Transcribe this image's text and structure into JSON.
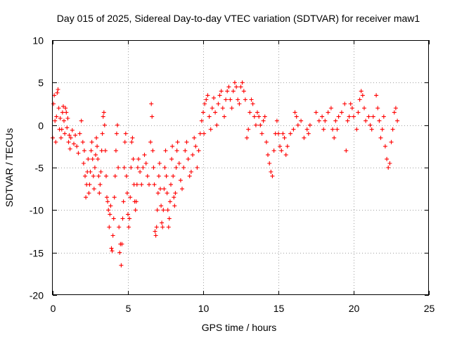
{
  "chart_data": {
    "type": "scatter",
    "title": "Day 015 of 2025, Sidereal Day-to-day VTEC variation (SDTVAR) for receiver maw1",
    "xlabel": "GPS time / hours",
    "ylabel": "SDTVAR / TECUs",
    "xlim": [
      0,
      25
    ],
    "ylim": [
      -20,
      10
    ],
    "xticks": [
      "0",
      "5",
      "10",
      "15",
      "20",
      "25"
    ],
    "yticks": [
      "-20",
      "-15",
      "-10",
      "-5",
      "0",
      "5",
      "10"
    ],
    "grid": true,
    "marker": "+",
    "color": "#ff0000",
    "series": [
      {
        "name": "SDTVAR",
        "points": [
          [
            0.0,
            -1.5
          ],
          [
            0.05,
            2.5
          ],
          [
            0.1,
            3.5
          ],
          [
            0.15,
            0.5
          ],
          [
            0.2,
            -2.0
          ],
          [
            0.25,
            1.0
          ],
          [
            0.3,
            3.8
          ],
          [
            0.35,
            4.2
          ],
          [
            0.4,
            2.0
          ],
          [
            0.45,
            -0.5
          ],
          [
            0.5,
            0.8
          ],
          [
            0.55,
            -1.5
          ],
          [
            0.6,
            -0.5
          ],
          [
            0.65,
            1.5
          ],
          [
            0.7,
            2.2
          ],
          [
            0.75,
            0.5
          ],
          [
            0.8,
            -1.0
          ],
          [
            0.85,
            2.0
          ],
          [
            0.9,
            1.5
          ],
          [
            0.95,
            -0.3
          ],
          [
            1.0,
            0.8
          ],
          [
            1.05,
            -2.0
          ],
          [
            1.1,
            -1.2
          ],
          [
            1.15,
            -2.8
          ],
          [
            1.2,
            -1.5
          ],
          [
            1.3,
            -0.6
          ],
          [
            1.4,
            -2.2
          ],
          [
            1.5,
            -1.2
          ],
          [
            1.6,
            -2.5
          ],
          [
            1.7,
            -3.3
          ],
          [
            1.8,
            -1.0
          ],
          [
            1.9,
            0.5
          ],
          [
            2.0,
            -2.0
          ],
          [
            2.05,
            -4.5
          ],
          [
            2.1,
            -3.0
          ],
          [
            2.15,
            -6.0
          ],
          [
            2.2,
            -8.5
          ],
          [
            2.25,
            -7.0
          ],
          [
            2.3,
            -5.5
          ],
          [
            2.35,
            -4.0
          ],
          [
            2.4,
            -8.0
          ],
          [
            2.45,
            -7.0
          ],
          [
            2.5,
            -5.5
          ],
          [
            2.55,
            -3.0
          ],
          [
            2.6,
            -2.0
          ],
          [
            2.65,
            -4.0
          ],
          [
            2.7,
            -6.0
          ],
          [
            2.75,
            -7.5
          ],
          [
            2.8,
            -5.0
          ],
          [
            2.85,
            -3.5
          ],
          [
            2.9,
            -1.5
          ],
          [
            2.95,
            -2.5
          ],
          [
            3.0,
            -4.0
          ],
          [
            3.05,
            -6.0
          ],
          [
            3.1,
            -8.0
          ],
          [
            3.15,
            -7.0
          ],
          [
            3.2,
            -5.5
          ],
          [
            3.25,
            -3.0
          ],
          [
            3.3,
            -1.0
          ],
          [
            3.35,
            1.0
          ],
          [
            3.4,
            1.5
          ],
          [
            3.45,
            0.0
          ],
          [
            3.5,
            -3.0
          ],
          [
            3.55,
            -6.0
          ],
          [
            3.6,
            -8.5
          ],
          [
            3.65,
            -9.0
          ],
          [
            3.7,
            -10.0
          ],
          [
            3.75,
            -12.0
          ],
          [
            3.8,
            -10.5
          ],
          [
            3.85,
            -9.5
          ],
          [
            3.9,
            -14.5
          ],
          [
            3.95,
            -14.8
          ],
          [
            4.0,
            -13.0
          ],
          [
            4.05,
            -11.0
          ],
          [
            4.1,
            -8.5
          ],
          [
            4.15,
            -6.0
          ],
          [
            4.2,
            -3.0
          ],
          [
            4.25,
            -1.0
          ],
          [
            4.3,
            0.0
          ],
          [
            4.35,
            -5.0
          ],
          [
            4.4,
            -12.0
          ],
          [
            4.45,
            -15.0
          ],
          [
            4.5,
            -14.0
          ],
          [
            4.55,
            -16.5
          ],
          [
            4.6,
            -14.0
          ],
          [
            4.65,
            -11.0
          ],
          [
            4.7,
            -9.0
          ],
          [
            4.75,
            -5.0
          ],
          [
            4.8,
            -2.0
          ],
          [
            4.85,
            -1.0
          ],
          [
            4.9,
            -6.0
          ],
          [
            4.95,
            -8.0
          ],
          [
            5.0,
            -10.5
          ],
          [
            5.05,
            -12.0
          ],
          [
            5.1,
            -11.0
          ],
          [
            5.15,
            -8.5
          ],
          [
            5.2,
            -5.0
          ],
          [
            5.25,
            -2.0
          ],
          [
            5.3,
            -1.5
          ],
          [
            5.35,
            -4.0
          ],
          [
            5.4,
            -7.0
          ],
          [
            5.45,
            -9.0
          ],
          [
            5.5,
            -10.0
          ],
          [
            5.55,
            -9.0
          ],
          [
            5.6,
            -7.0
          ],
          [
            5.65,
            -5.0
          ],
          [
            5.7,
            -4.0
          ],
          [
            5.8,
            -5.5
          ],
          [
            5.9,
            -7.0
          ],
          [
            6.0,
            -5.0
          ],
          [
            6.1,
            -3.5
          ],
          [
            6.2,
            -4.5
          ],
          [
            6.3,
            -6.0
          ],
          [
            6.4,
            -7.0
          ],
          [
            6.5,
            -2.0
          ],
          [
            6.55,
            2.5
          ],
          [
            6.6,
            1.0
          ],
          [
            6.65,
            -3.0
          ],
          [
            6.7,
            -5.0
          ],
          [
            6.75,
            -7.0
          ],
          [
            6.8,
            -12.5
          ],
          [
            6.85,
            -13.0
          ],
          [
            6.9,
            -12.0
          ],
          [
            6.95,
            -10.0
          ],
          [
            7.0,
            -8.0
          ],
          [
            7.05,
            -6.0
          ],
          [
            7.1,
            -4.5
          ],
          [
            7.15,
            -7.5
          ],
          [
            7.2,
            -9.5
          ],
          [
            7.25,
            -11.5
          ],
          [
            7.3,
            -12.0
          ],
          [
            7.35,
            -10.0
          ],
          [
            7.4,
            -7.5
          ],
          [
            7.45,
            -5.0
          ],
          [
            7.5,
            -3.0
          ],
          [
            7.55,
            -6.0
          ],
          [
            7.6,
            -8.0
          ],
          [
            7.65,
            -10.0
          ],
          [
            7.7,
            -12.0
          ],
          [
            7.75,
            -11.0
          ],
          [
            7.8,
            -9.0
          ],
          [
            7.85,
            -7.0
          ],
          [
            7.9,
            -4.0
          ],
          [
            7.95,
            -2.5
          ],
          [
            8.0,
            -6.0
          ],
          [
            8.05,
            -8.5
          ],
          [
            8.1,
            -9.5
          ],
          [
            8.15,
            -8.0
          ],
          [
            8.2,
            -5.0
          ],
          [
            8.25,
            -3.0
          ],
          [
            8.3,
            -2.0
          ],
          [
            8.4,
            -4.5
          ],
          [
            8.5,
            -6.5
          ],
          [
            8.6,
            -7.5
          ],
          [
            8.7,
            -5.0
          ],
          [
            8.8,
            -3.0
          ],
          [
            8.9,
            -2.0
          ],
          [
            9.0,
            -4.0
          ],
          [
            9.1,
            -6.0
          ],
          [
            9.2,
            -5.5
          ],
          [
            9.3,
            -3.5
          ],
          [
            9.4,
            -1.5
          ],
          [
            9.5,
            -2.5
          ],
          [
            9.6,
            -5.0
          ],
          [
            9.7,
            -3.0
          ],
          [
            9.8,
            -1.0
          ],
          [
            9.9,
            0.5
          ],
          [
            10.0,
            1.5
          ],
          [
            10.05,
            -1.0
          ],
          [
            10.1,
            2.5
          ],
          [
            10.2,
            3.0
          ],
          [
            10.3,
            3.5
          ],
          [
            10.4,
            1.0
          ],
          [
            10.5,
            -0.5
          ],
          [
            10.6,
            2.0
          ],
          [
            10.7,
            3.2
          ],
          [
            10.8,
            1.5
          ],
          [
            10.9,
            0.0
          ],
          [
            11.0,
            2.5
          ],
          [
            11.1,
            3.5
          ],
          [
            11.2,
            4.0
          ],
          [
            11.3,
            2.0
          ],
          [
            11.4,
            1.0
          ],
          [
            11.5,
            3.0
          ],
          [
            11.6,
            4.0
          ],
          [
            11.7,
            4.5
          ],
          [
            11.8,
            3.0
          ],
          [
            11.9,
            2.0
          ],
          [
            12.0,
            4.0
          ],
          [
            12.1,
            5.0
          ],
          [
            12.2,
            4.5
          ],
          [
            12.3,
            3.0
          ],
          [
            12.4,
            2.5
          ],
          [
            12.5,
            4.5
          ],
          [
            12.6,
            5.0
          ],
          [
            12.7,
            4.0
          ],
          [
            12.8,
            3.0
          ],
          [
            12.9,
            -1.5
          ],
          [
            13.0,
            -0.5
          ],
          [
            13.1,
            1.5
          ],
          [
            13.2,
            3.0
          ],
          [
            13.3,
            2.5
          ],
          [
            13.4,
            1.0
          ],
          [
            13.5,
            0.0
          ],
          [
            13.6,
            1.5
          ],
          [
            13.7,
            1.0
          ],
          [
            13.8,
            0.0
          ],
          [
            13.9,
            -1.0
          ],
          [
            14.0,
            0.5
          ],
          [
            14.1,
            1.0
          ],
          [
            14.2,
            -2.0
          ],
          [
            14.3,
            -3.5
          ],
          [
            14.4,
            -4.5
          ],
          [
            14.5,
            -5.5
          ],
          [
            14.6,
            -6.0
          ],
          [
            14.7,
            -3.0
          ],
          [
            14.8,
            -1.0
          ],
          [
            14.9,
            0.5
          ],
          [
            15.0,
            -1.0
          ],
          [
            15.1,
            -2.5
          ],
          [
            15.2,
            -3.0
          ],
          [
            15.3,
            -1.0
          ],
          [
            15.4,
            -1.5
          ],
          [
            15.5,
            -3.5
          ],
          [
            15.6,
            -2.5
          ],
          [
            15.8,
            -1.0
          ],
          [
            16.0,
            -0.5
          ],
          [
            16.1,
            1.5
          ],
          [
            16.2,
            1.0
          ],
          [
            16.3,
            0.0
          ],
          [
            16.5,
            0.5
          ],
          [
            16.7,
            -1.5
          ],
          [
            16.9,
            -0.5
          ],
          [
            17.0,
            -1.0
          ],
          [
            17.1,
            0.0
          ],
          [
            17.5,
            1.5
          ],
          [
            17.7,
            0.5
          ],
          [
            17.9,
            1.0
          ],
          [
            18.0,
            -0.5
          ],
          [
            18.1,
            0.5
          ],
          [
            18.3,
            1.5
          ],
          [
            18.5,
            2.0
          ],
          [
            18.6,
            -0.5
          ],
          [
            18.7,
            -1.5
          ],
          [
            18.8,
            0.5
          ],
          [
            18.9,
            -0.5
          ],
          [
            19.0,
            1.0
          ],
          [
            19.2,
            1.5
          ],
          [
            19.4,
            2.5
          ],
          [
            19.5,
            -3.0
          ],
          [
            19.6,
            0.5
          ],
          [
            19.7,
            1.0
          ],
          [
            19.8,
            2.5
          ],
          [
            19.9,
            2.0
          ],
          [
            20.0,
            1.0
          ],
          [
            20.2,
            -0.5
          ],
          [
            20.3,
            1.5
          ],
          [
            20.4,
            3.0
          ],
          [
            20.5,
            4.0
          ],
          [
            20.6,
            3.5
          ],
          [
            20.7,
            2.0
          ],
          [
            20.8,
            0.5
          ],
          [
            21.0,
            1.0
          ],
          [
            21.1,
            0.0
          ],
          [
            21.2,
            -0.5
          ],
          [
            21.3,
            1.0
          ],
          [
            21.5,
            3.5
          ],
          [
            21.6,
            2.0
          ],
          [
            21.7,
            0.5
          ],
          [
            21.8,
            -1.5
          ],
          [
            21.9,
            -0.5
          ],
          [
            22.0,
            1.0
          ],
          [
            22.1,
            -2.5
          ],
          [
            22.2,
            -4.0
          ],
          [
            22.3,
            -5.0
          ],
          [
            22.4,
            -4.5
          ],
          [
            22.5,
            -2.0
          ],
          [
            22.6,
            -0.5
          ],
          [
            22.7,
            1.5
          ],
          [
            22.8,
            2.0
          ],
          [
            22.9,
            0.5
          ]
        ]
      }
    ]
  }
}
